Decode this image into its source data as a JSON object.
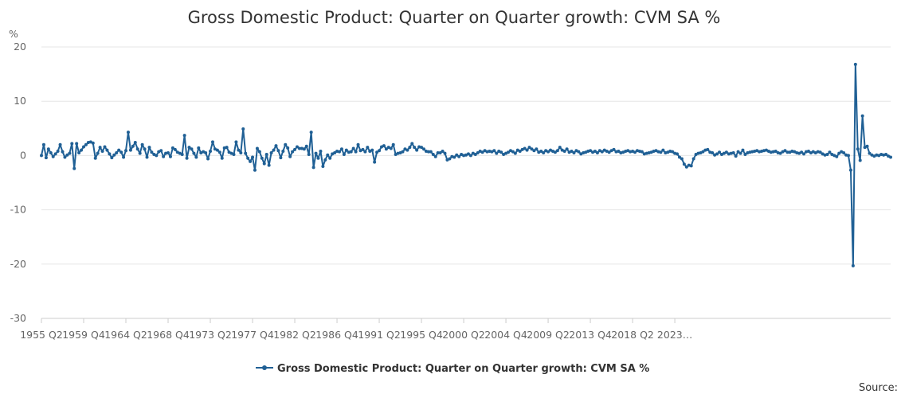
{
  "chart_data": {
    "type": "line",
    "title": "Gross Domestic Product: Quarter on Quarter growth: CVM SA %",
    "ylabel": "%",
    "ylim": [
      -30,
      20
    ],
    "yticks": [
      20,
      10,
      0,
      -10,
      -20,
      -30
    ],
    "xticks": [
      "1955 Q2",
      "1959 Q4",
      "1964 Q2",
      "1968 Q4",
      "1973 Q2",
      "1977 Q4",
      "1982 Q2",
      "1986 Q4",
      "1991 Q2",
      "1995 Q4",
      "2000 Q2",
      "2004 Q4",
      "2009 Q2",
      "2013 Q4",
      "2018 Q2",
      "2023…"
    ],
    "x_start": "1955 Q2",
    "x_end": "2024 Q1",
    "legend": "bottom-center",
    "grid": true,
    "color": "#206095",
    "series": [
      {
        "name": "Gross Domestic Product: Quarter on Quarter growth: CVM SA %",
        "values": [
          0.0,
          2.0,
          -0.4,
          1.2,
          0.5,
          -0.2,
          0.3,
          0.8,
          2.0,
          0.7,
          -0.3,
          0.1,
          0.4,
          2.2,
          -2.4,
          2.2,
          0.5,
          1.0,
          1.6,
          2.0,
          2.4,
          2.5,
          2.3,
          -0.5,
          0.4,
          1.5,
          0.8,
          1.6,
          1.0,
          0.3,
          -0.4,
          0.1,
          0.5,
          1.0,
          0.6,
          -0.3,
          0.9,
          4.3,
          1.0,
          1.7,
          2.4,
          1.2,
          0.4,
          2.0,
          1.2,
          -0.3,
          1.5,
          0.6,
          0.2,
          0.0,
          0.7,
          0.9,
          -0.2,
          0.4,
          0.5,
          -0.2,
          1.4,
          1.1,
          0.6,
          0.4,
          0.2,
          3.7,
          -0.5,
          1.5,
          1.2,
          0.4,
          -0.3,
          1.4,
          0.5,
          0.7,
          0.5,
          -0.6,
          0.8,
          2.5,
          1.2,
          1.0,
          0.6,
          -0.5,
          1.4,
          1.5,
          0.6,
          0.4,
          0.2,
          2.5,
          1.0,
          0.5,
          4.9,
          0.4,
          -0.5,
          -1.1,
          -0.3,
          -2.7,
          1.3,
          0.7,
          -0.5,
          -1.5,
          0.2,
          -1.8,
          0.5,
          1.0,
          1.8,
          0.9,
          -0.4,
          0.8,
          2.0,
          1.4,
          -0.2,
          0.7,
          1.1,
          1.6,
          1.3,
          1.3,
          1.2,
          1.7,
          0.2,
          4.3,
          -2.2,
          0.4,
          -0.5,
          0.8,
          -2.0,
          -0.8,
          0.1,
          -0.5,
          0.3,
          0.5,
          0.8,
          0.7,
          1.2,
          0.2,
          1.0,
          0.6,
          0.7,
          1.3,
          0.7,
          2.0,
          0.9,
          1.1,
          0.7,
          1.5,
          0.8,
          1.0,
          -1.2,
          0.6,
          0.9,
          1.6,
          1.8,
          1.2,
          1.5,
          1.3,
          2.0,
          0.2,
          0.4,
          0.5,
          0.7,
          1.2,
          1.0,
          1.5,
          2.2,
          1.5,
          1.0,
          1.6,
          1.5,
          1.2,
          0.8,
          0.7,
          0.7,
          0.2,
          -0.2,
          0.5,
          0.5,
          0.8,
          0.4,
          -0.8,
          -0.6,
          -0.2,
          -0.3,
          0.1,
          -0.2,
          0.2,
          0.0,
          0.1,
          0.3,
          0.0,
          0.4,
          0.2,
          0.5,
          0.8,
          0.6,
          0.9,
          0.7,
          0.8,
          0.7,
          0.9,
          0.4,
          0.8,
          0.6,
          0.2,
          0.4,
          0.6,
          0.9,
          0.7,
          0.4,
          1.0,
          0.8,
          1.1,
          1.3,
          1.0,
          1.5,
          1.2,
          0.9,
          1.2,
          0.6,
          0.8,
          0.5,
          0.9,
          0.7,
          1.0,
          0.8,
          0.6,
          0.9,
          1.5,
          1.0,
          0.8,
          1.2,
          0.6,
          0.8,
          0.5,
          0.9,
          0.7,
          0.3,
          0.5,
          0.6,
          0.8,
          0.9,
          0.6,
          0.8,
          0.5,
          0.9,
          0.7,
          1.0,
          0.8,
          0.6,
          0.9,
          1.1,
          0.7,
          0.8,
          0.5,
          0.6,
          0.8,
          0.9,
          0.7,
          0.8,
          0.6,
          0.9,
          0.8,
          0.7,
          0.3,
          0.4,
          0.5,
          0.6,
          0.8,
          0.9,
          0.7,
          0.6,
          1.0,
          0.5,
          0.6,
          0.8,
          0.7,
          0.4,
          0.3,
          -0.3,
          -0.6,
          -1.6,
          -2.1,
          -1.8,
          -1.9,
          -0.6,
          0.2,
          0.4,
          0.5,
          0.7,
          1.0,
          1.1,
          0.6,
          0.5,
          0.1,
          0.3,
          0.6,
          0.2,
          0.4,
          0.6,
          0.3,
          0.4,
          0.5,
          -0.1,
          0.7,
          0.4,
          1.0,
          0.2,
          0.5,
          0.6,
          0.7,
          0.8,
          0.9,
          0.7,
          0.8,
          0.9,
          1.0,
          0.8,
          0.6,
          0.7,
          0.8,
          0.5,
          0.4,
          0.7,
          0.9,
          0.6,
          0.6,
          0.8,
          0.7,
          0.5,
          0.4,
          0.6,
          0.3,
          0.7,
          0.8,
          0.5,
          0.7,
          0.5,
          0.7,
          0.6,
          0.3,
          0.1,
          0.2,
          0.6,
          0.2,
          0.0,
          -0.2,
          0.4,
          0.7,
          0.5,
          0.1,
          0.0,
          -2.7,
          -20.3,
          16.8,
          1.2,
          -0.9,
          7.3,
          1.5,
          1.7,
          0.4,
          0.1,
          -0.1,
          0.1,
          0.0,
          0.2,
          0.1,
          0.2,
          -0.1,
          -0.3
        ]
      }
    ],
    "source_label": "Source:"
  }
}
